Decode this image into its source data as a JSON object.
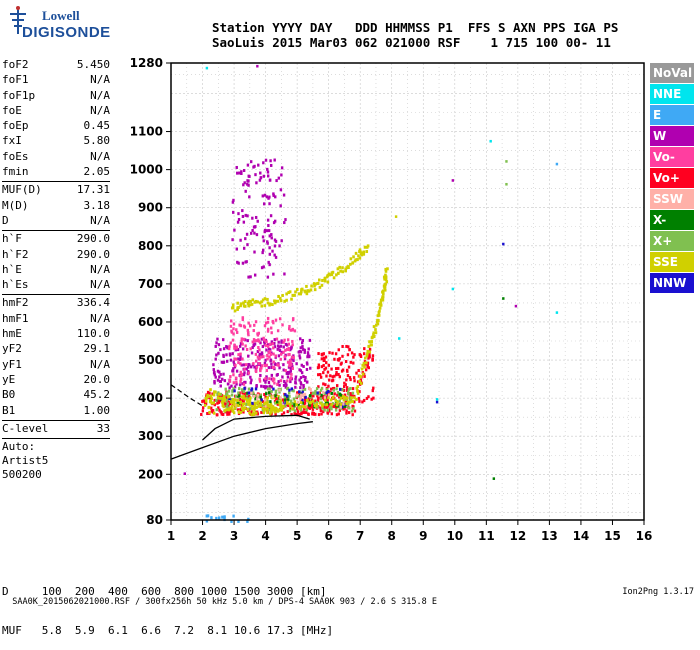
{
  "logo": {
    "line1": "Lowell",
    "line2": "DIGISONDE"
  },
  "header": {
    "row1": "Station YYYY DAY   DDD HHMMSS P1  FFS S AXN PPS IGA PS",
    "row2": "SaoLuis 2015 Mar03 062 021000 RSF    1 715 100 00- 11"
  },
  "params": {
    "group1": [
      {
        "k": "foF2",
        "v": "5.450"
      },
      {
        "k": "foF1",
        "v": "N/A"
      },
      {
        "k": "foF1p",
        "v": "N/A"
      },
      {
        "k": "foE",
        "v": "N/A"
      },
      {
        "k": "foEp",
        "v": "0.45"
      },
      {
        "k": "fxI",
        "v": "5.80"
      },
      {
        "k": "foEs",
        "v": "N/A"
      },
      {
        "k": "fmin",
        "v": "2.05"
      }
    ],
    "group2": [
      {
        "k": "MUF(D)",
        "v": "17.31"
      },
      {
        "k": "M(D)",
        "v": "3.18"
      },
      {
        "k": "D",
        "v": "N/A"
      }
    ],
    "group3": [
      {
        "k": "h`F",
        "v": "290.0"
      },
      {
        "k": "h`F2",
        "v": "290.0"
      },
      {
        "k": "h`E",
        "v": "N/A"
      },
      {
        "k": "h`Es",
        "v": "N/A"
      }
    ],
    "group4": [
      {
        "k": "hmF2",
        "v": "336.4"
      },
      {
        "k": "hmF1",
        "v": "N/A"
      },
      {
        "k": "hmE",
        "v": "110.0"
      },
      {
        "k": "yF2",
        "v": "29.1"
      },
      {
        "k": "yF1",
        "v": "N/A"
      },
      {
        "k": "yE",
        "v": "20.0"
      },
      {
        "k": "B0",
        "v": "45.2"
      },
      {
        "k": "B1",
        "v": "1.00"
      }
    ],
    "clevel": {
      "k": "C-level",
      "v": "33"
    },
    "auto": [
      "Auto:",
      "Artist5",
      "500200"
    ]
  },
  "legend": [
    {
      "label": "NoVal",
      "color": "#999999"
    },
    {
      "label": "NNE",
      "color": "#00e5ee"
    },
    {
      "label": "E",
      "color": "#3fa9f5"
    },
    {
      "label": "W",
      "color": "#b000b0"
    },
    {
      "label": "Vo-",
      "color": "#ff3ea0"
    },
    {
      "label": "Vo+",
      "color": "#ff0020"
    },
    {
      "label": "SSW",
      "color": "#ffb0a8"
    },
    {
      "label": "X-",
      "color": "#008000"
    },
    {
      "label": "X+",
      "color": "#80c050"
    },
    {
      "label": "SSE",
      "color": "#d0d000"
    },
    {
      "label": "NNW",
      "color": "#1a10d0"
    }
  ],
  "dmuf": {
    "row1": "D     100  200  400  600  800 1000 1500 3000 [km]",
    "row2": "MUF   5.8  5.9  6.1  6.6  7.2  8.1 10.6 17.3 [MHz]"
  },
  "footer": {
    "left": "SAA0K_2015062021000.RSF / 300fx256h 50 kHz 5.0 km / DPS-4 SAA0K 903 / 2.6 S 315.8 E",
    "right": "Ion2Png 1.3.17"
  },
  "chart_data": {
    "type": "scatter",
    "xlim": [
      1,
      16
    ],
    "ylim": [
      80,
      1280
    ],
    "xticks": [
      1,
      2,
      3,
      4,
      5,
      6,
      7,
      8,
      9,
      10,
      11,
      12,
      13,
      14,
      15,
      16
    ],
    "yticks": [
      80,
      200,
      300,
      400,
      500,
      600,
      700,
      800,
      900,
      1000,
      1100,
      1280
    ],
    "grid": true,
    "legend_placement": "right",
    "regions": [
      {
        "name": "W",
        "color": "#b000b0",
        "x": [
          2.9,
          4.6
        ],
        "y": [
          720,
          1030
        ],
        "n": 130
      },
      {
        "name": "W",
        "color": "#b000b0",
        "x": [
          2.3,
          5.4
        ],
        "y": [
          430,
          560
        ],
        "n": 260
      },
      {
        "name": "Vo-",
        "color": "#ff3ea0",
        "x": [
          2.8,
          4.9
        ],
        "y": [
          440,
          620
        ],
        "n": 180
      },
      {
        "name": "Vo+",
        "color": "#ff0020",
        "x": [
          1.9,
          6.8
        ],
        "y": [
          360,
          420
        ],
        "n": 320
      },
      {
        "name": "Vo+",
        "color": "#ff0020",
        "x": [
          5.6,
          7.4
        ],
        "y": [
          390,
          540
        ],
        "n": 150
      },
      {
        "name": "X+",
        "color": "#80c050",
        "x": [
          2.4,
          6.8
        ],
        "y": [
          370,
          430
        ],
        "n": 160
      },
      {
        "name": "SSE",
        "color": "#d0d000",
        "x": [
          2.0,
          4.5
        ],
        "y": [
          360,
          410
        ],
        "n": 120
      },
      {
        "name": "X-",
        "color": "#008000",
        "x": [
          3.0,
          6.5
        ],
        "y": [
          380,
          420
        ],
        "n": 40
      },
      {
        "name": "NNW",
        "color": "#1a10d0",
        "x": [
          2.5,
          6.5
        ],
        "y": [
          380,
          430
        ],
        "n": 30
      },
      {
        "name": "SSW",
        "color": "#ffb0a8",
        "x": [
          3.0,
          6.5
        ],
        "y": [
          380,
          430
        ],
        "n": 30
      },
      {
        "name": "E",
        "color": "#3fa9f5",
        "x": [
          2.0,
          3.5
        ],
        "y": [
          80,
          100
        ],
        "n": 14
      }
    ],
    "traces": [
      {
        "name": "SSE",
        "color": "#d0d000",
        "points": [
          [
            2.9,
            640
          ],
          [
            3.5,
            650
          ],
          [
            4.2,
            660
          ],
          [
            5.0,
            680
          ],
          [
            5.6,
            700
          ],
          [
            6.2,
            730
          ],
          [
            6.8,
            770
          ],
          [
            7.2,
            800
          ]
        ]
      },
      {
        "name": "SSE",
        "color": "#d0d000",
        "points": [
          [
            6.8,
            400
          ],
          [
            7.2,
            520
          ],
          [
            7.5,
            600
          ],
          [
            7.7,
            680
          ],
          [
            7.8,
            740
          ]
        ]
      },
      {
        "name": "SSE",
        "color": "#d0d000",
        "points": [
          [
            2.1,
            420
          ],
          [
            3.0,
            390
          ],
          [
            4.0,
            380
          ],
          [
            5.0,
            385
          ],
          [
            6.0,
            395
          ],
          [
            6.8,
            400
          ]
        ]
      }
    ],
    "sparse_points": [
      {
        "x": 2.1,
        "y": 1270,
        "c": "#00e5ee"
      },
      {
        "x": 3.7,
        "y": 1275,
        "c": "#b000b0"
      },
      {
        "x": 9.9,
        "y": 975,
        "c": "#b000b0"
      },
      {
        "x": 11.1,
        "y": 1078,
        "c": "#00e5ee"
      },
      {
        "x": 11.6,
        "y": 1025,
        "c": "#80c050"
      },
      {
        "x": 11.6,
        "y": 965,
        "c": "#80c050"
      },
      {
        "x": 13.2,
        "y": 1018,
        "c": "#3fa9f5"
      },
      {
        "x": 11.5,
        "y": 808,
        "c": "#1a10d0"
      },
      {
        "x": 9.9,
        "y": 690,
        "c": "#00e5ee"
      },
      {
        "x": 11.5,
        "y": 665,
        "c": "#008000"
      },
      {
        "x": 11.9,
        "y": 645,
        "c": "#b000b0"
      },
      {
        "x": 13.2,
        "y": 628,
        "c": "#00e5ee"
      },
      {
        "x": 8.1,
        "y": 880,
        "c": "#d0d000"
      },
      {
        "x": 8.2,
        "y": 560,
        "c": "#00e5ee"
      },
      {
        "x": 9.4,
        "y": 400,
        "c": "#00e5ee"
      },
      {
        "x": 9.4,
        "y": 393,
        "c": "#1a10d0"
      },
      {
        "x": 11.2,
        "y": 192,
        "c": "#008000"
      },
      {
        "x": 1.4,
        "y": 205,
        "c": "#b000b0"
      }
    ],
    "profile_curve": [
      [
        1,
        240
      ],
      [
        2,
        270
      ],
      [
        3,
        300
      ],
      [
        4,
        320
      ],
      [
        5,
        333
      ],
      [
        5.5,
        338
      ]
    ],
    "trace_curve": [
      [
        2.0,
        290
      ],
      [
        2.4,
        320
      ],
      [
        3,
        345
      ],
      [
        4,
        352
      ],
      [
        5,
        355
      ],
      [
        5.4,
        345
      ]
    ],
    "dashed_curve": [
      [
        1,
        435
      ],
      [
        1.6,
        400
      ],
      [
        2.0,
        380
      ]
    ]
  }
}
